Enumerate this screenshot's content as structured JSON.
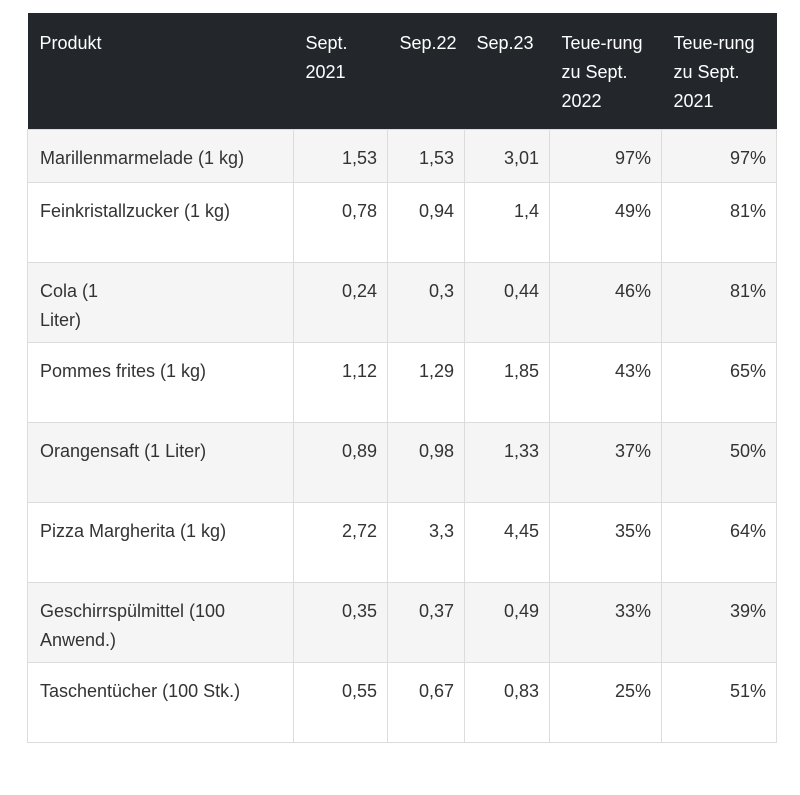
{
  "table": {
    "headers": [
      "Produkt",
      "Sept. 2021",
      "Sep.22",
      "Sep.23",
      "Teue-rung zu Sept. 2022",
      "Teue-rung zu Sept. 2021"
    ],
    "rows": [
      [
        "Marillenmarmelade (1 kg)",
        "1,53",
        "1,53",
        "3,01",
        "97%",
        "97%"
      ],
      [
        "Feinkristallzucker (1 kg)",
        "0,78",
        "0,94",
        "1,4",
        "49%",
        "81%"
      ],
      [
        "Cola (1 Liter)",
        "0,24",
        "0,3",
        "0,44",
        "46%",
        "81%"
      ],
      [
        "Pommes frites (1 kg)",
        "1,12",
        "1,29",
        "1,85",
        "43%",
        "65%"
      ],
      [
        "Orangensaft (1 Liter)",
        "0,89",
        "0,98",
        "1,33",
        "37%",
        "50%"
      ],
      [
        "Pizza Margherita (1 kg)",
        "2,72",
        "3,3",
        "4,45",
        "35%",
        "64%"
      ],
      [
        "Geschirrspülmittel (100 Anwend.)",
        "0,35",
        "0,37",
        "0,49",
        "33%",
        "39%"
      ],
      [
        "Taschentücher (100 Stk.)",
        "0,55",
        "0,67",
        "0,83",
        "25%",
        "51%"
      ]
    ]
  }
}
